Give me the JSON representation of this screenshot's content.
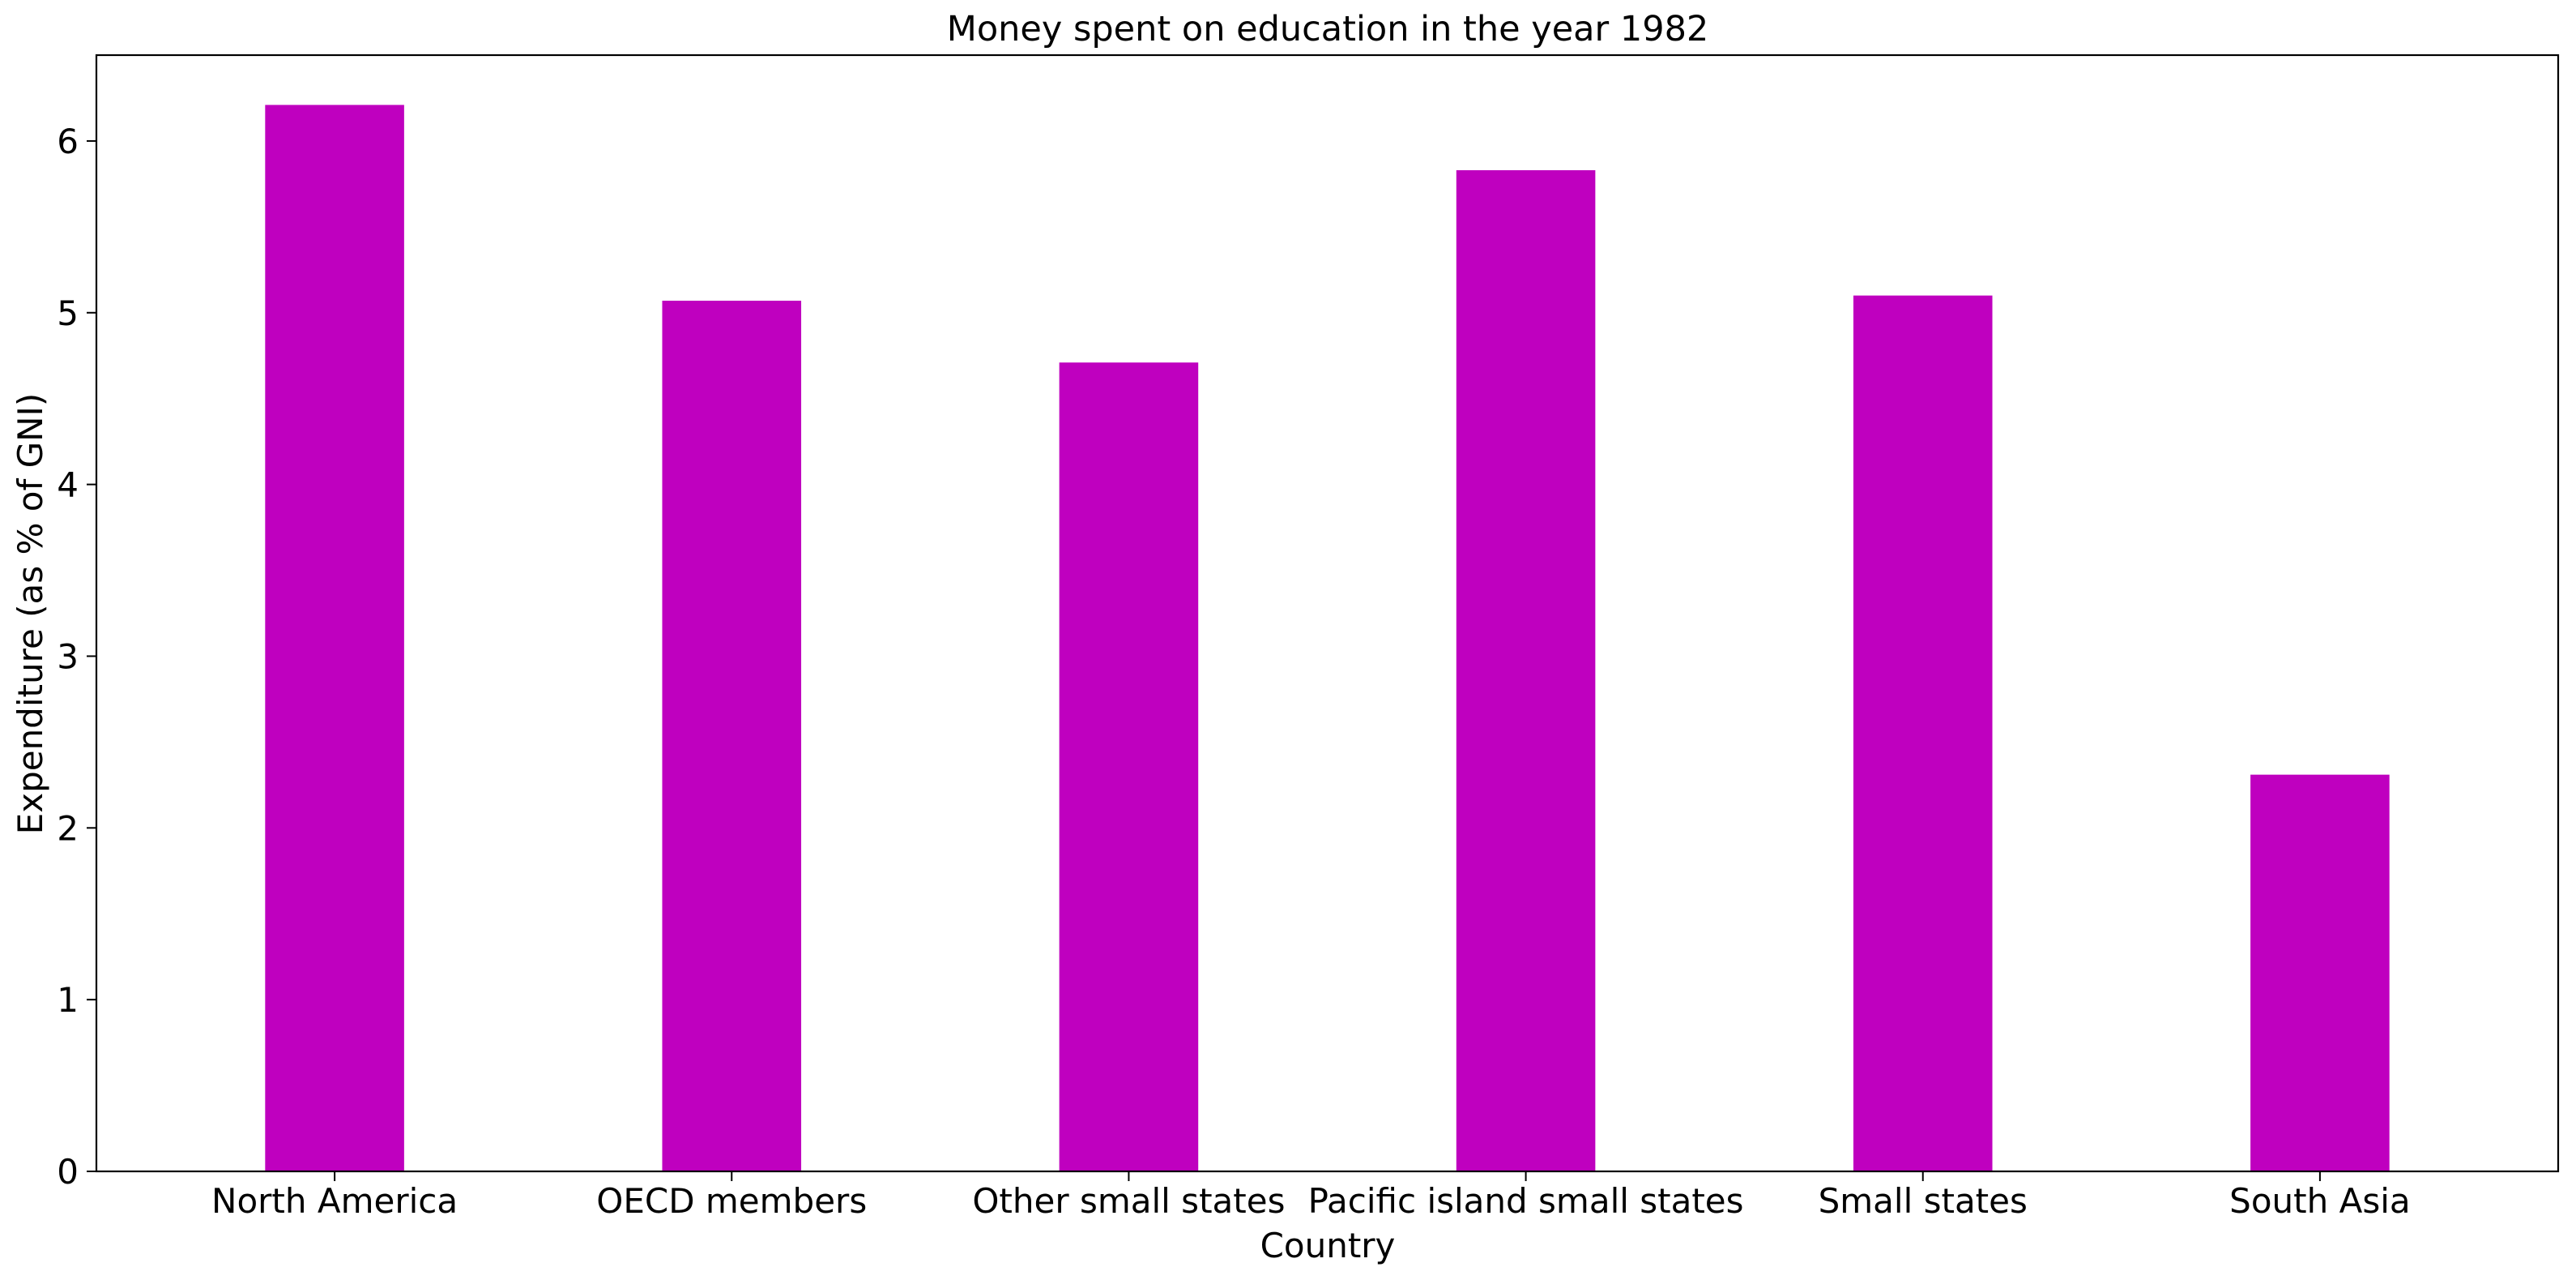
{
  "chart_data": {
    "type": "bar",
    "title": "Money spent on education in the year 1982",
    "xlabel": "Country",
    "ylabel": "Expenditure (as % of GNI)",
    "categories": [
      "North America",
      "OECD members",
      "Other small states",
      "Pacific island small states",
      "Small states",
      "South Asia"
    ],
    "values": [
      6.21,
      5.07,
      4.71,
      5.83,
      5.1,
      2.31
    ],
    "ylim": [
      0,
      6.5
    ],
    "yticks": [
      "0",
      "1",
      "2",
      "3",
      "4",
      "5",
      "6"
    ],
    "grid": false,
    "legend": "none",
    "bar_color": "#bf00bf"
  }
}
